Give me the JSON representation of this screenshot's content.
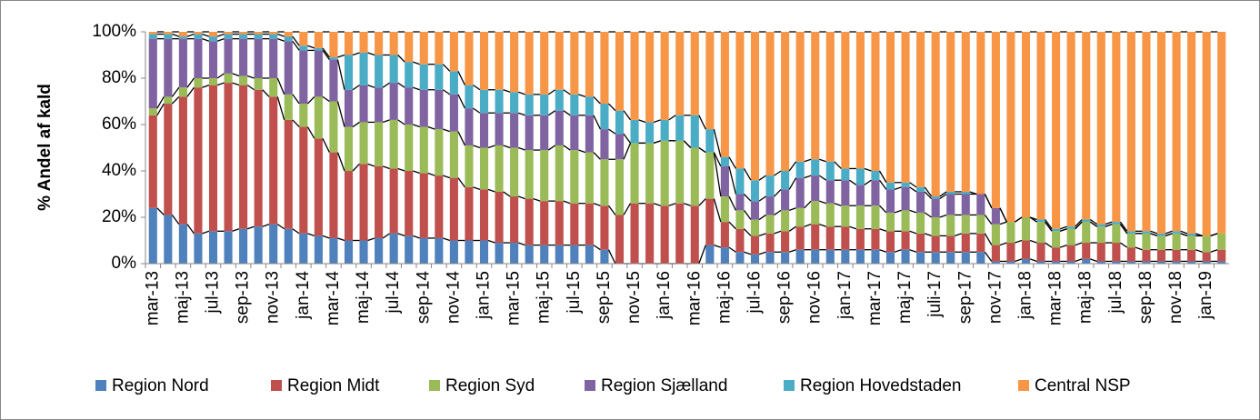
{
  "chart_data": {
    "type": "stacked-bar",
    "y_label": "% Andel af kald",
    "categories": [
      "mar-13",
      null,
      "maj-13",
      null,
      "jul-13",
      null,
      "sep-13",
      null,
      "nov-13",
      null,
      "jan-14",
      null,
      "mar-14",
      null,
      "maj-14",
      null,
      "jul-14",
      null,
      "sep-14",
      null,
      "nov-14",
      null,
      "jan-15",
      null,
      "mar-15",
      null,
      "maj-15",
      null,
      "jul-15",
      null,
      "sep-15",
      null,
      "nov-15",
      null,
      "jan-16",
      null,
      "mar-16",
      null,
      "maj-16",
      null,
      "jul-16",
      null,
      "sep-16",
      null,
      "nov-16",
      null,
      "jan-17",
      null,
      "mar-17",
      null,
      "maj-17",
      null,
      "juli-17",
      null,
      "sep-17",
      null,
      "nov-17",
      null,
      "jan-18",
      null,
      "mar-18",
      null,
      "maj-18",
      null,
      "jul-18",
      null,
      "sep-18",
      null,
      "nov-18",
      null,
      "jan-19",
      null
    ],
    "series": [
      {
        "name": "Region Nord",
        "color": "#4f81bd",
        "values": [
          24,
          21,
          17,
          13,
          14,
          14,
          15,
          16,
          17,
          15,
          13,
          12,
          11,
          10,
          10,
          11,
          13,
          12,
          11,
          11,
          10,
          10,
          10,
          9,
          9,
          8,
          8,
          8,
          8,
          8,
          6,
          0,
          0,
          0,
          0,
          0,
          0,
          8,
          7,
          5,
          4,
          5,
          5,
          6,
          6,
          6,
          6,
          6,
          6,
          5,
          6,
          5,
          5,
          5,
          5,
          5,
          1,
          1,
          2,
          1,
          1,
          1,
          2,
          1,
          1,
          1,
          1,
          1,
          1,
          1,
          1,
          1
        ]
      },
      {
        "name": "Region Midt",
        "color": "#c0504d",
        "values": [
          40,
          48,
          55,
          63,
          63,
          64,
          62,
          59,
          55,
          47,
          46,
          42,
          37,
          30,
          33,
          31,
          28,
          28,
          28,
          27,
          27,
          23,
          22,
          22,
          20,
          20,
          19,
          19,
          18,
          18,
          19,
          21,
          26,
          26,
          25,
          26,
          25,
          20,
          11,
          10,
          8,
          8,
          9,
          10,
          11,
          10,
          10,
          9,
          9,
          9,
          8,
          8,
          7,
          7,
          8,
          8,
          7,
          8,
          8,
          8,
          6,
          7,
          7,
          8,
          8,
          6,
          5,
          5,
          5,
          5,
          4,
          5
        ]
      },
      {
        "name": "Region Syd",
        "color": "#9bbb59",
        "values": [
          3,
          3,
          4,
          4,
          3,
          4,
          4,
          5,
          8,
          11,
          10,
          18,
          22,
          19,
          18,
          19,
          21,
          20,
          20,
          20,
          20,
          18,
          18,
          20,
          21,
          21,
          22,
          24,
          23,
          22,
          20,
          24,
          26,
          26,
          28,
          27,
          25,
          20,
          11,
          8,
          7,
          8,
          9,
          8,
          10,
          10,
          9,
          10,
          10,
          8,
          9,
          9,
          8,
          9,
          8,
          8,
          9,
          9,
          10,
          9,
          7,
          7,
          9,
          7,
          8,
          6,
          7,
          6,
          7,
          6,
          7,
          7
        ]
      },
      {
        "name": "Region Sjælland",
        "color": "#8064a2",
        "values": [
          30,
          25,
          21,
          17,
          16,
          15,
          16,
          17,
          17,
          23,
          23,
          20,
          18,
          16,
          16,
          15,
          16,
          16,
          16,
          17,
          16,
          16,
          15,
          14,
          15,
          15,
          15,
          15,
          15,
          16,
          13,
          11,
          0,
          0,
          0,
          0,
          0,
          0,
          13,
          7,
          8,
          8,
          9,
          13,
          11,
          10,
          11,
          9,
          11,
          10,
          10,
          9,
          8,
          9,
          9,
          9,
          7,
          0,
          0,
          0,
          0,
          0,
          0,
          0,
          0,
          0,
          0,
          0,
          0,
          0,
          0,
          0
        ]
      },
      {
        "name": "Region Hovedstaden",
        "color": "#4bacc6",
        "values": [
          2,
          2,
          1,
          2,
          2,
          2,
          2,
          2,
          2,
          2,
          2,
          1,
          1,
          15,
          14,
          14,
          12,
          11,
          11,
          11,
          10,
          10,
          10,
          10,
          9,
          9,
          9,
          9,
          9,
          8,
          11,
          10,
          10,
          9,
          9,
          11,
          14,
          10,
          4,
          11,
          9,
          9,
          8,
          7,
          7,
          8,
          5,
          7,
          4,
          3,
          2,
          2,
          1,
          1,
          1,
          0,
          0,
          0,
          0,
          1,
          1,
          1,
          1,
          1,
          1,
          1,
          1,
          1,
          1,
          1,
          0,
          0
        ]
      },
      {
        "name": "Central NSP",
        "color": "#f79646",
        "values": [
          1,
          1,
          2,
          1,
          2,
          1,
          1,
          1,
          1,
          2,
          6,
          7,
          11,
          10,
          9,
          10,
          10,
          13,
          14,
          14,
          17,
          23,
          25,
          25,
          26,
          27,
          27,
          25,
          27,
          28,
          31,
          34,
          38,
          39,
          38,
          36,
          36,
          42,
          54,
          59,
          64,
          62,
          60,
          56,
          55,
          56,
          59,
          59,
          60,
          65,
          65,
          67,
          71,
          69,
          69,
          70,
          76,
          82,
          80,
          81,
          85,
          84,
          81,
          83,
          82,
          86,
          86,
          87,
          86,
          87,
          88,
          87
        ]
      }
    ],
    "ylim": [
      0,
      100
    ],
    "yticks": [
      {
        "value": 0,
        "label": "0%"
      },
      {
        "value": 20,
        "label": "20%"
      },
      {
        "value": 40,
        "label": "40%"
      },
      {
        "value": 60,
        "label": "60%"
      },
      {
        "value": 80,
        "label": "80%"
      },
      {
        "value": 100,
        "label": "100%"
      }
    ],
    "legend": "bottom"
  }
}
